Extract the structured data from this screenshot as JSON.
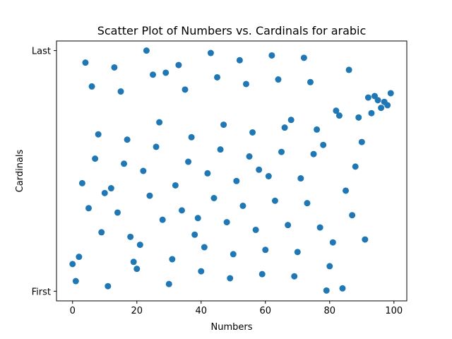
{
  "chart_data": {
    "type": "scatter",
    "title": "Scatter Plot of Numbers vs. Cardinals for arabic",
    "xlabel": "Numbers",
    "ylabel": "Cardinals",
    "xlim": [
      -5,
      104
    ],
    "ylim": [
      -0.04,
      1.04
    ],
    "xticks": [
      0,
      20,
      40,
      60,
      80,
      100
    ],
    "yticks": [
      {
        "value": 0,
        "label": "First"
      },
      {
        "value": 1,
        "label": "Last"
      }
    ],
    "marker_color": "#1f77b4",
    "points": [
      {
        "x": 0,
        "y": 0.113
      },
      {
        "x": 1,
        "y": 0.042
      },
      {
        "x": 2,
        "y": 0.143
      },
      {
        "x": 3,
        "y": 0.449
      },
      {
        "x": 4,
        "y": 0.95
      },
      {
        "x": 5,
        "y": 0.345
      },
      {
        "x": 6,
        "y": 0.851
      },
      {
        "x": 7,
        "y": 0.551
      },
      {
        "x": 8,
        "y": 0.652
      },
      {
        "x": 9,
        "y": 0.245
      },
      {
        "x": 10,
        "y": 0.408
      },
      {
        "x": 11,
        "y": 0.021
      },
      {
        "x": 12,
        "y": 0.428
      },
      {
        "x": 13,
        "y": 0.93
      },
      {
        "x": 14,
        "y": 0.327
      },
      {
        "x": 15,
        "y": 0.83
      },
      {
        "x": 16,
        "y": 0.53
      },
      {
        "x": 17,
        "y": 0.63
      },
      {
        "x": 18,
        "y": 0.226
      },
      {
        "x": 19,
        "y": 0.122
      },
      {
        "x": 20,
        "y": 0.093
      },
      {
        "x": 21,
        "y": 0.193
      },
      {
        "x": 22,
        "y": 0.5
      },
      {
        "x": 23,
        "y": 1.0
      },
      {
        "x": 24,
        "y": 0.397
      },
      {
        "x": 25,
        "y": 0.9
      },
      {
        "x": 26,
        "y": 0.6
      },
      {
        "x": 27,
        "y": 0.702
      },
      {
        "x": 28,
        "y": 0.297
      },
      {
        "x": 29,
        "y": 0.908
      },
      {
        "x": 30,
        "y": 0.03
      },
      {
        "x": 31,
        "y": 0.133
      },
      {
        "x": 32,
        "y": 0.44
      },
      {
        "x": 33,
        "y": 0.94
      },
      {
        "x": 34,
        "y": 0.336
      },
      {
        "x": 35,
        "y": 0.838
      },
      {
        "x": 36,
        "y": 0.538
      },
      {
        "x": 37,
        "y": 0.64
      },
      {
        "x": 38,
        "y": 0.235
      },
      {
        "x": 39,
        "y": 0.304
      },
      {
        "x": 40,
        "y": 0.083
      },
      {
        "x": 41,
        "y": 0.183
      },
      {
        "x": 42,
        "y": 0.49
      },
      {
        "x": 43,
        "y": 0.99
      },
      {
        "x": 44,
        "y": 0.387
      },
      {
        "x": 45,
        "y": 0.889
      },
      {
        "x": 46,
        "y": 0.589
      },
      {
        "x": 47,
        "y": 0.692
      },
      {
        "x": 48,
        "y": 0.287
      },
      {
        "x": 49,
        "y": 0.054
      },
      {
        "x": 50,
        "y": 0.154
      },
      {
        "x": 51,
        "y": 0.458
      },
      {
        "x": 52,
        "y": 0.96
      },
      {
        "x": 53,
        "y": 0.355
      },
      {
        "x": 54,
        "y": 0.861
      },
      {
        "x": 55,
        "y": 0.56
      },
      {
        "x": 56,
        "y": 0.66
      },
      {
        "x": 57,
        "y": 0.255
      },
      {
        "x": 58,
        "y": 0.505
      },
      {
        "x": 59,
        "y": 0.071
      },
      {
        "x": 60,
        "y": 0.172
      },
      {
        "x": 61,
        "y": 0.478
      },
      {
        "x": 62,
        "y": 0.98
      },
      {
        "x": 63,
        "y": 0.376
      },
      {
        "x": 64,
        "y": 0.88
      },
      {
        "x": 65,
        "y": 0.579
      },
      {
        "x": 66,
        "y": 0.68
      },
      {
        "x": 67,
        "y": 0.275
      },
      {
        "x": 68,
        "y": 0.712
      },
      {
        "x": 69,
        "y": 0.062
      },
      {
        "x": 70,
        "y": 0.163
      },
      {
        "x": 71,
        "y": 0.469
      },
      {
        "x": 72,
        "y": 0.97
      },
      {
        "x": 73,
        "y": 0.366
      },
      {
        "x": 74,
        "y": 0.869
      },
      {
        "x": 75,
        "y": 0.57
      },
      {
        "x": 76,
        "y": 0.672
      },
      {
        "x": 77,
        "y": 0.265
      },
      {
        "x": 78,
        "y": 0.608
      },
      {
        "x": 79,
        "y": 0.003
      },
      {
        "x": 80,
        "y": 0.104
      },
      {
        "x": 81,
        "y": 0.203
      },
      {
        "x": 82,
        "y": 0.75
      },
      {
        "x": 83,
        "y": 0.73
      },
      {
        "x": 84,
        "y": 0.012
      },
      {
        "x": 85,
        "y": 0.418
      },
      {
        "x": 86,
        "y": 0.92
      },
      {
        "x": 87,
        "y": 0.316
      },
      {
        "x": 88,
        "y": 0.518
      },
      {
        "x": 89,
        "y": 0.722
      },
      {
        "x": 90,
        "y": 0.62
      },
      {
        "x": 91,
        "y": 0.215
      },
      {
        "x": 92,
        "y": 0.805
      },
      {
        "x": 93,
        "y": 0.74
      },
      {
        "x": 94,
        "y": 0.811
      },
      {
        "x": 95,
        "y": 0.794
      },
      {
        "x": 96,
        "y": 0.762
      },
      {
        "x": 97,
        "y": 0.787
      },
      {
        "x": 98,
        "y": 0.773
      },
      {
        "x": 99,
        "y": 0.823
      }
    ]
  }
}
